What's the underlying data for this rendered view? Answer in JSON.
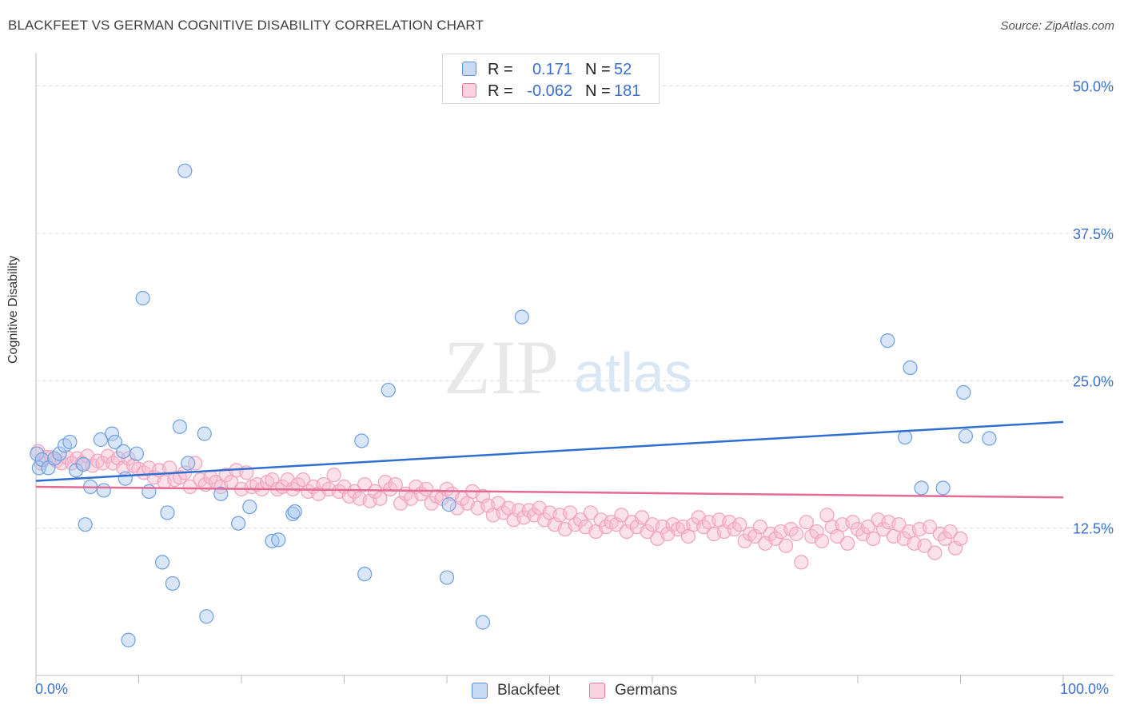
{
  "title": "BLACKFEET VS GERMAN COGNITIVE DISABILITY CORRELATION CHART",
  "source": "Source: ZipAtlas.com",
  "watermark": {
    "zip": "ZIP",
    "atlas": "atlas"
  },
  "legend": {
    "rows": [
      {
        "r_label": "R =",
        "r_value": "0.171",
        "n_label": "N =",
        "n_value": "52",
        "color": "#a9c7ef",
        "border": "#5b8fd6"
      },
      {
        "r_label": "R =",
        "r_value": "-0.062",
        "n_label": "N =",
        "n_value": "181",
        "color": "#f7bcd0",
        "border": "#e2799f"
      }
    ]
  },
  "bottom_legend": [
    {
      "label": "Blackfeet",
      "color": "#a9c7ef",
      "border": "#5b8fd6"
    },
    {
      "label": "Germans",
      "color": "#f7bcd0",
      "border": "#e2799f"
    }
  ],
  "chart_data": {
    "type": "scatter",
    "title": "BLACKFEET VS GERMAN COGNITIVE DISABILITY CORRELATION CHART",
    "xlabel": "",
    "ylabel": "Cognitive Disability",
    "xlim": [
      0,
      100
    ],
    "ylim": [
      0,
      52
    ],
    "x_tick_labels": [
      "0.0%",
      "100.0%"
    ],
    "y_ticks": [
      12.5,
      25.0,
      37.5,
      50.0
    ],
    "y_tick_labels": [
      "12.5%",
      "25.0%",
      "37.5%",
      "50.0%"
    ],
    "grid": "horizontal dashed",
    "series": [
      {
        "name": "Blackfeet",
        "color": "#6f9fe0",
        "line_color": "#2f6fcf",
        "trend": {
          "x": [
            0,
            100
          ],
          "y": [
            16.5,
            21.5
          ]
        },
        "points": [
          [
            0.1,
            18.8
          ],
          [
            0.3,
            17.6
          ],
          [
            0.6,
            18.3
          ],
          [
            1.2,
            17.6
          ],
          [
            1.8,
            18.4
          ],
          [
            2.3,
            18.8
          ],
          [
            2.8,
            19.5
          ],
          [
            3.3,
            19.8
          ],
          [
            3.9,
            17.4
          ],
          [
            4.6,
            17.9
          ],
          [
            4.8,
            12.8
          ],
          [
            5.3,
            16.0
          ],
          [
            6.3,
            20.0
          ],
          [
            6.6,
            15.7
          ],
          [
            7.4,
            20.5
          ],
          [
            7.7,
            19.8
          ],
          [
            8.5,
            19.0
          ],
          [
            8.7,
            16.7
          ],
          [
            9.0,
            3.0
          ],
          [
            9.8,
            18.8
          ],
          [
            10.4,
            32.0
          ],
          [
            11.0,
            15.6
          ],
          [
            12.3,
            9.6
          ],
          [
            12.8,
            13.8
          ],
          [
            13.3,
            7.8
          ],
          [
            14.0,
            21.1
          ],
          [
            14.5,
            42.8
          ],
          [
            14.8,
            18.0
          ],
          [
            16.4,
            20.5
          ],
          [
            16.6,
            5.0
          ],
          [
            18.0,
            15.4
          ],
          [
            19.7,
            12.9
          ],
          [
            20.8,
            14.3
          ],
          [
            23.0,
            11.4
          ],
          [
            23.6,
            11.5
          ],
          [
            25.0,
            13.7
          ],
          [
            25.2,
            13.9
          ],
          [
            31.7,
            19.9
          ],
          [
            32.0,
            8.6
          ],
          [
            34.3,
            24.2
          ],
          [
            40.0,
            8.3
          ],
          [
            40.2,
            14.5
          ],
          [
            43.5,
            4.5
          ],
          [
            47.3,
            30.4
          ],
          [
            82.9,
            28.4
          ],
          [
            84.6,
            20.2
          ],
          [
            85.1,
            26.1
          ],
          [
            86.2,
            15.9
          ],
          [
            88.3,
            15.9
          ],
          [
            90.3,
            24.0
          ],
          [
            90.5,
            20.3
          ],
          [
            92.8,
            20.1
          ]
        ]
      },
      {
        "name": "Germans",
        "color": "#f0a1bc",
        "line_color": "#e46a96",
        "trend": {
          "x": [
            0,
            100
          ],
          "y": [
            16.0,
            15.1
          ]
        },
        "points": [
          [
            0.2,
            19.0
          ],
          [
            0.5,
            18.0
          ],
          [
            1.0,
            18.5
          ],
          [
            1.5,
            18.5
          ],
          [
            2.0,
            18.2
          ],
          [
            2.5,
            18.0
          ],
          [
            3.0,
            18.5
          ],
          [
            3.5,
            18.0
          ],
          [
            4.0,
            18.4
          ],
          [
            4.5,
            18.0
          ],
          [
            5.0,
            18.6
          ],
          [
            5.5,
            17.8
          ],
          [
            6.0,
            18.2
          ],
          [
            6.5,
            18.0
          ],
          [
            7.0,
            18.6
          ],
          [
            7.5,
            18.0
          ],
          [
            8.0,
            18.4
          ],
          [
            8.5,
            17.6
          ],
          [
            9.0,
            18.4
          ],
          [
            9.5,
            17.8
          ],
          [
            10.0,
            17.5
          ],
          [
            10.5,
            17.2
          ],
          [
            11.0,
            17.6
          ],
          [
            11.5,
            16.8
          ],
          [
            12.0,
            17.4
          ],
          [
            12.5,
            16.4
          ],
          [
            13.0,
            17.6
          ],
          [
            13.5,
            16.6
          ],
          [
            14.0,
            16.8
          ],
          [
            14.5,
            17.2
          ],
          [
            15.0,
            16.0
          ],
          [
            15.5,
            18.0
          ],
          [
            16.0,
            16.6
          ],
          [
            16.5,
            16.2
          ],
          [
            17.0,
            16.8
          ],
          [
            17.5,
            16.4
          ],
          [
            18.0,
            16.0
          ],
          [
            18.5,
            17.0
          ],
          [
            19.0,
            16.4
          ],
          [
            19.5,
            17.4
          ],
          [
            20.0,
            15.8
          ],
          [
            20.5,
            17.2
          ],
          [
            21.0,
            16.0
          ],
          [
            21.5,
            16.2
          ],
          [
            22.0,
            15.8
          ],
          [
            22.5,
            16.4
          ],
          [
            23.0,
            16.6
          ],
          [
            23.5,
            15.8
          ],
          [
            24.0,
            16.0
          ],
          [
            24.5,
            16.6
          ],
          [
            25.0,
            15.8
          ],
          [
            25.5,
            16.2
          ],
          [
            26.0,
            16.6
          ],
          [
            26.5,
            15.6
          ],
          [
            27.0,
            16.0
          ],
          [
            27.5,
            15.4
          ],
          [
            28.0,
            16.2
          ],
          [
            28.5,
            15.8
          ],
          [
            29.0,
            17.0
          ],
          [
            29.5,
            15.6
          ],
          [
            30.0,
            16.0
          ],
          [
            30.5,
            15.2
          ],
          [
            31.0,
            15.6
          ],
          [
            31.5,
            15.0
          ],
          [
            32.0,
            16.2
          ],
          [
            32.5,
            14.8
          ],
          [
            33.0,
            15.6
          ],
          [
            33.5,
            15.0
          ],
          [
            34.0,
            16.4
          ],
          [
            34.5,
            15.8
          ],
          [
            35.0,
            16.2
          ],
          [
            35.5,
            14.6
          ],
          [
            36.0,
            15.4
          ],
          [
            36.5,
            15.0
          ],
          [
            37.0,
            16.0
          ],
          [
            37.5,
            15.4
          ],
          [
            38.0,
            15.8
          ],
          [
            38.5,
            14.6
          ],
          [
            39.0,
            15.2
          ],
          [
            39.5,
            15.0
          ],
          [
            40.0,
            15.8
          ],
          [
            40.5,
            15.4
          ],
          [
            41.0,
            14.2
          ],
          [
            41.5,
            15.0
          ],
          [
            42.0,
            14.6
          ],
          [
            42.5,
            15.6
          ],
          [
            43.0,
            14.2
          ],
          [
            43.5,
            15.2
          ],
          [
            44.0,
            14.4
          ],
          [
            44.5,
            13.6
          ],
          [
            45.0,
            14.6
          ],
          [
            45.5,
            13.8
          ],
          [
            46.0,
            14.2
          ],
          [
            46.5,
            13.2
          ],
          [
            47.0,
            14.0
          ],
          [
            47.5,
            13.4
          ],
          [
            48.0,
            14.0
          ],
          [
            48.5,
            13.6
          ],
          [
            49.0,
            14.2
          ],
          [
            49.5,
            13.2
          ],
          [
            50.0,
            13.8
          ],
          [
            50.5,
            12.8
          ],
          [
            51.0,
            13.6
          ],
          [
            51.5,
            12.4
          ],
          [
            52.0,
            13.8
          ],
          [
            52.5,
            12.8
          ],
          [
            53.0,
            13.2
          ],
          [
            53.5,
            12.6
          ],
          [
            54.0,
            13.8
          ],
          [
            54.5,
            12.2
          ],
          [
            55.0,
            13.2
          ],
          [
            55.5,
            12.6
          ],
          [
            56.0,
            13.0
          ],
          [
            56.5,
            12.8
          ],
          [
            57.0,
            13.6
          ],
          [
            57.5,
            12.2
          ],
          [
            58.0,
            13.0
          ],
          [
            58.5,
            12.6
          ],
          [
            59.0,
            13.4
          ],
          [
            59.5,
            12.2
          ],
          [
            60.0,
            12.8
          ],
          [
            60.5,
            11.6
          ],
          [
            61.0,
            12.6
          ],
          [
            61.5,
            12.0
          ],
          [
            62.0,
            12.8
          ],
          [
            62.5,
            12.4
          ],
          [
            63.0,
            12.6
          ],
          [
            63.5,
            11.8
          ],
          [
            64.0,
            12.8
          ],
          [
            64.5,
            13.4
          ],
          [
            65.0,
            12.6
          ],
          [
            65.5,
            13.0
          ],
          [
            66.0,
            12.0
          ],
          [
            66.5,
            13.2
          ],
          [
            67.0,
            12.2
          ],
          [
            67.5,
            13.0
          ],
          [
            68.0,
            12.4
          ],
          [
            68.5,
            12.8
          ],
          [
            69.0,
            11.4
          ],
          [
            69.5,
            12.0
          ],
          [
            70.0,
            11.8
          ],
          [
            70.5,
            12.6
          ],
          [
            71.0,
            11.2
          ],
          [
            71.5,
            12.0
          ],
          [
            72.0,
            11.6
          ],
          [
            72.5,
            12.2
          ],
          [
            73.0,
            11.0
          ],
          [
            73.5,
            12.4
          ],
          [
            74.0,
            12.0
          ],
          [
            74.5,
            9.6
          ],
          [
            75.0,
            13.0
          ],
          [
            75.5,
            11.8
          ],
          [
            76.0,
            12.2
          ],
          [
            76.5,
            11.4
          ],
          [
            77.0,
            13.6
          ],
          [
            77.5,
            12.6
          ],
          [
            78.0,
            11.8
          ],
          [
            78.5,
            12.8
          ],
          [
            79.0,
            11.2
          ],
          [
            79.5,
            13.0
          ],
          [
            80.0,
            12.4
          ],
          [
            80.5,
            12.0
          ],
          [
            81.0,
            12.6
          ],
          [
            81.5,
            11.6
          ],
          [
            82.0,
            13.2
          ],
          [
            82.5,
            12.4
          ],
          [
            83.0,
            13.0
          ],
          [
            83.5,
            11.8
          ],
          [
            84.0,
            12.8
          ],
          [
            84.5,
            11.6
          ],
          [
            85.0,
            12.2
          ],
          [
            85.5,
            11.2
          ],
          [
            86.0,
            12.4
          ],
          [
            86.5,
            11.0
          ],
          [
            87.0,
            12.6
          ],
          [
            87.5,
            10.4
          ],
          [
            88.0,
            12.0
          ],
          [
            88.5,
            11.6
          ],
          [
            89.0,
            12.2
          ],
          [
            89.5,
            10.8
          ],
          [
            90.0,
            11.6
          ]
        ]
      }
    ]
  }
}
